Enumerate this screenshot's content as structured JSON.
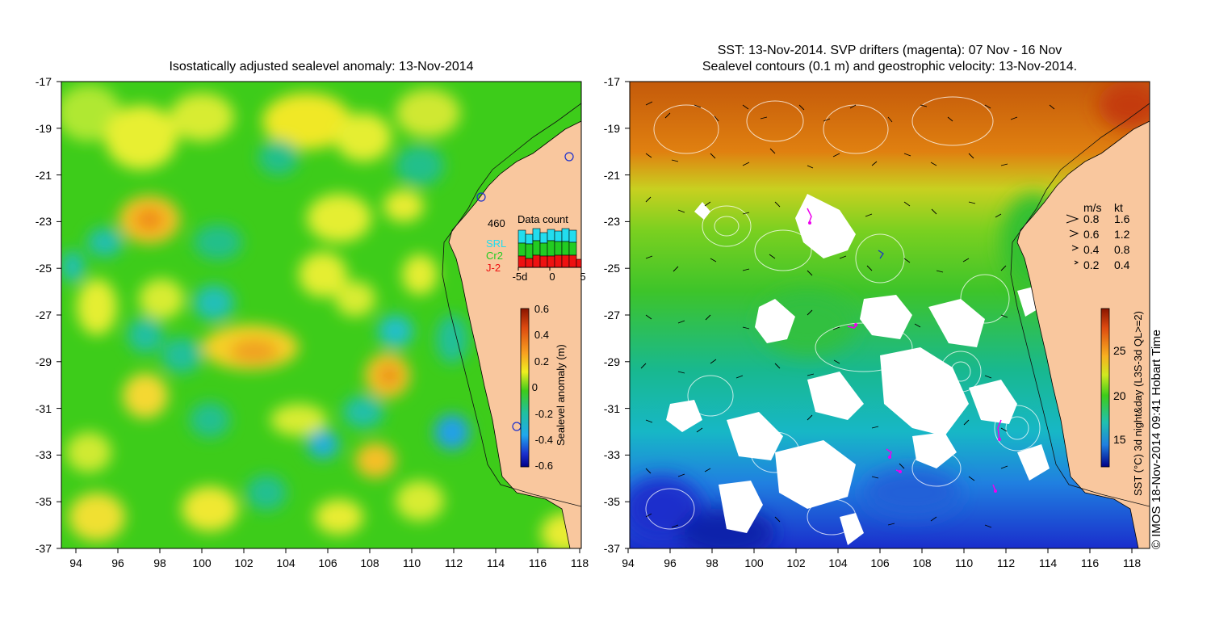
{
  "left_panel": {
    "title": "Isostatically adjusted sealevel anomaly: 13-Nov-2014",
    "lat_ticks": [
      "-17",
      "-19",
      "-21",
      "-23",
      "-25",
      "-27",
      "-29",
      "-31",
      "-33",
      "-35",
      "-37"
    ],
    "lon_ticks": [
      "94",
      "96",
      "98",
      "100",
      "102",
      "104",
      "106",
      "108",
      "110",
      "112",
      "114",
      "116",
      "118"
    ],
    "data_count": {
      "title": "Data count",
      "max_label": "460",
      "missions": [
        {
          "name": "SRL",
          "color": "#22ddee"
        },
        {
          "name": "Cr2",
          "color": "#22cc22"
        },
        {
          "name": "J-2",
          "color": "#ee1111"
        }
      ],
      "x_ticks": [
        "-5d",
        "0",
        "5"
      ]
    },
    "colorbar": {
      "label": "Sealevel anomaly (m)",
      "ticks": [
        "0.6",
        "0.4",
        "0.2",
        "0",
        "-0.2",
        "-0.4",
        "-0.6"
      ]
    }
  },
  "right_panel": {
    "title_line1": "SST: 13-Nov-2014. SVP drifters (magenta): 07 Nov - 16 Nov",
    "title_line2": "Sealevel contours (0.1 m) and geostrophic velocity: 13-Nov-2014.",
    "lat_ticks": [
      "-17",
      "-19",
      "-21",
      "-23",
      "-25",
      "-27",
      "-29",
      "-31",
      "-33",
      "-35",
      "-37"
    ],
    "lon_ticks": [
      "94",
      "96",
      "98",
      "100",
      "102",
      "104",
      "106",
      "108",
      "110",
      "112",
      "114",
      "116",
      "118"
    ],
    "velocity_legend": {
      "header_ms": "m/s",
      "header_kt": "kt",
      "rows": [
        {
          "ms": "0.8",
          "kt": "1.6"
        },
        {
          "ms": "0.6",
          "kt": "1.2"
        },
        {
          "ms": "0.4",
          "kt": "0.8"
        },
        {
          "ms": "0.2",
          "kt": "0.4"
        }
      ]
    },
    "colorbar": {
      "label": "SST (°C) 3d night&day (L3S-3d QL>=2)",
      "ticks": [
        "25",
        "20",
        "15"
      ]
    }
  },
  "copyright": "© IMOS 18-Nov-2014 09:41 Hobart Time",
  "colors": {
    "land": "#f9c79e",
    "ssh_background": "#3dcc1a",
    "sst_warm": "#e07a10",
    "sst_mid": "#3dc42a",
    "sst_cool": "#17b7c6",
    "sst_cold": "#1a3ccc",
    "drifter": "#ee00ee"
  }
}
